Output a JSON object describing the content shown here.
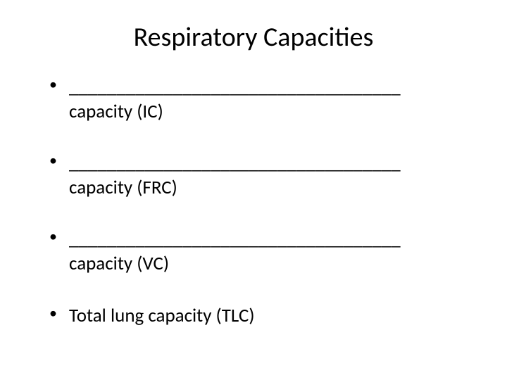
{
  "slide": {
    "title": "Respiratory Capacities",
    "bullets": [
      {
        "blank": "___________________________________",
        "text": "capacity (IC)"
      },
      {
        "blank": "___________________________________",
        "text": "capacity (FRC)"
      },
      {
        "blank": "___________________________________",
        "text": "capacity (VC)"
      },
      {
        "blank": "",
        "text": "Total lung capacity (TLC)"
      }
    ]
  },
  "styling": {
    "background_color": "#ffffff",
    "text_color": "#000000",
    "title_fontsize": 38,
    "body_fontsize": 27,
    "font_family": "Calibri"
  }
}
